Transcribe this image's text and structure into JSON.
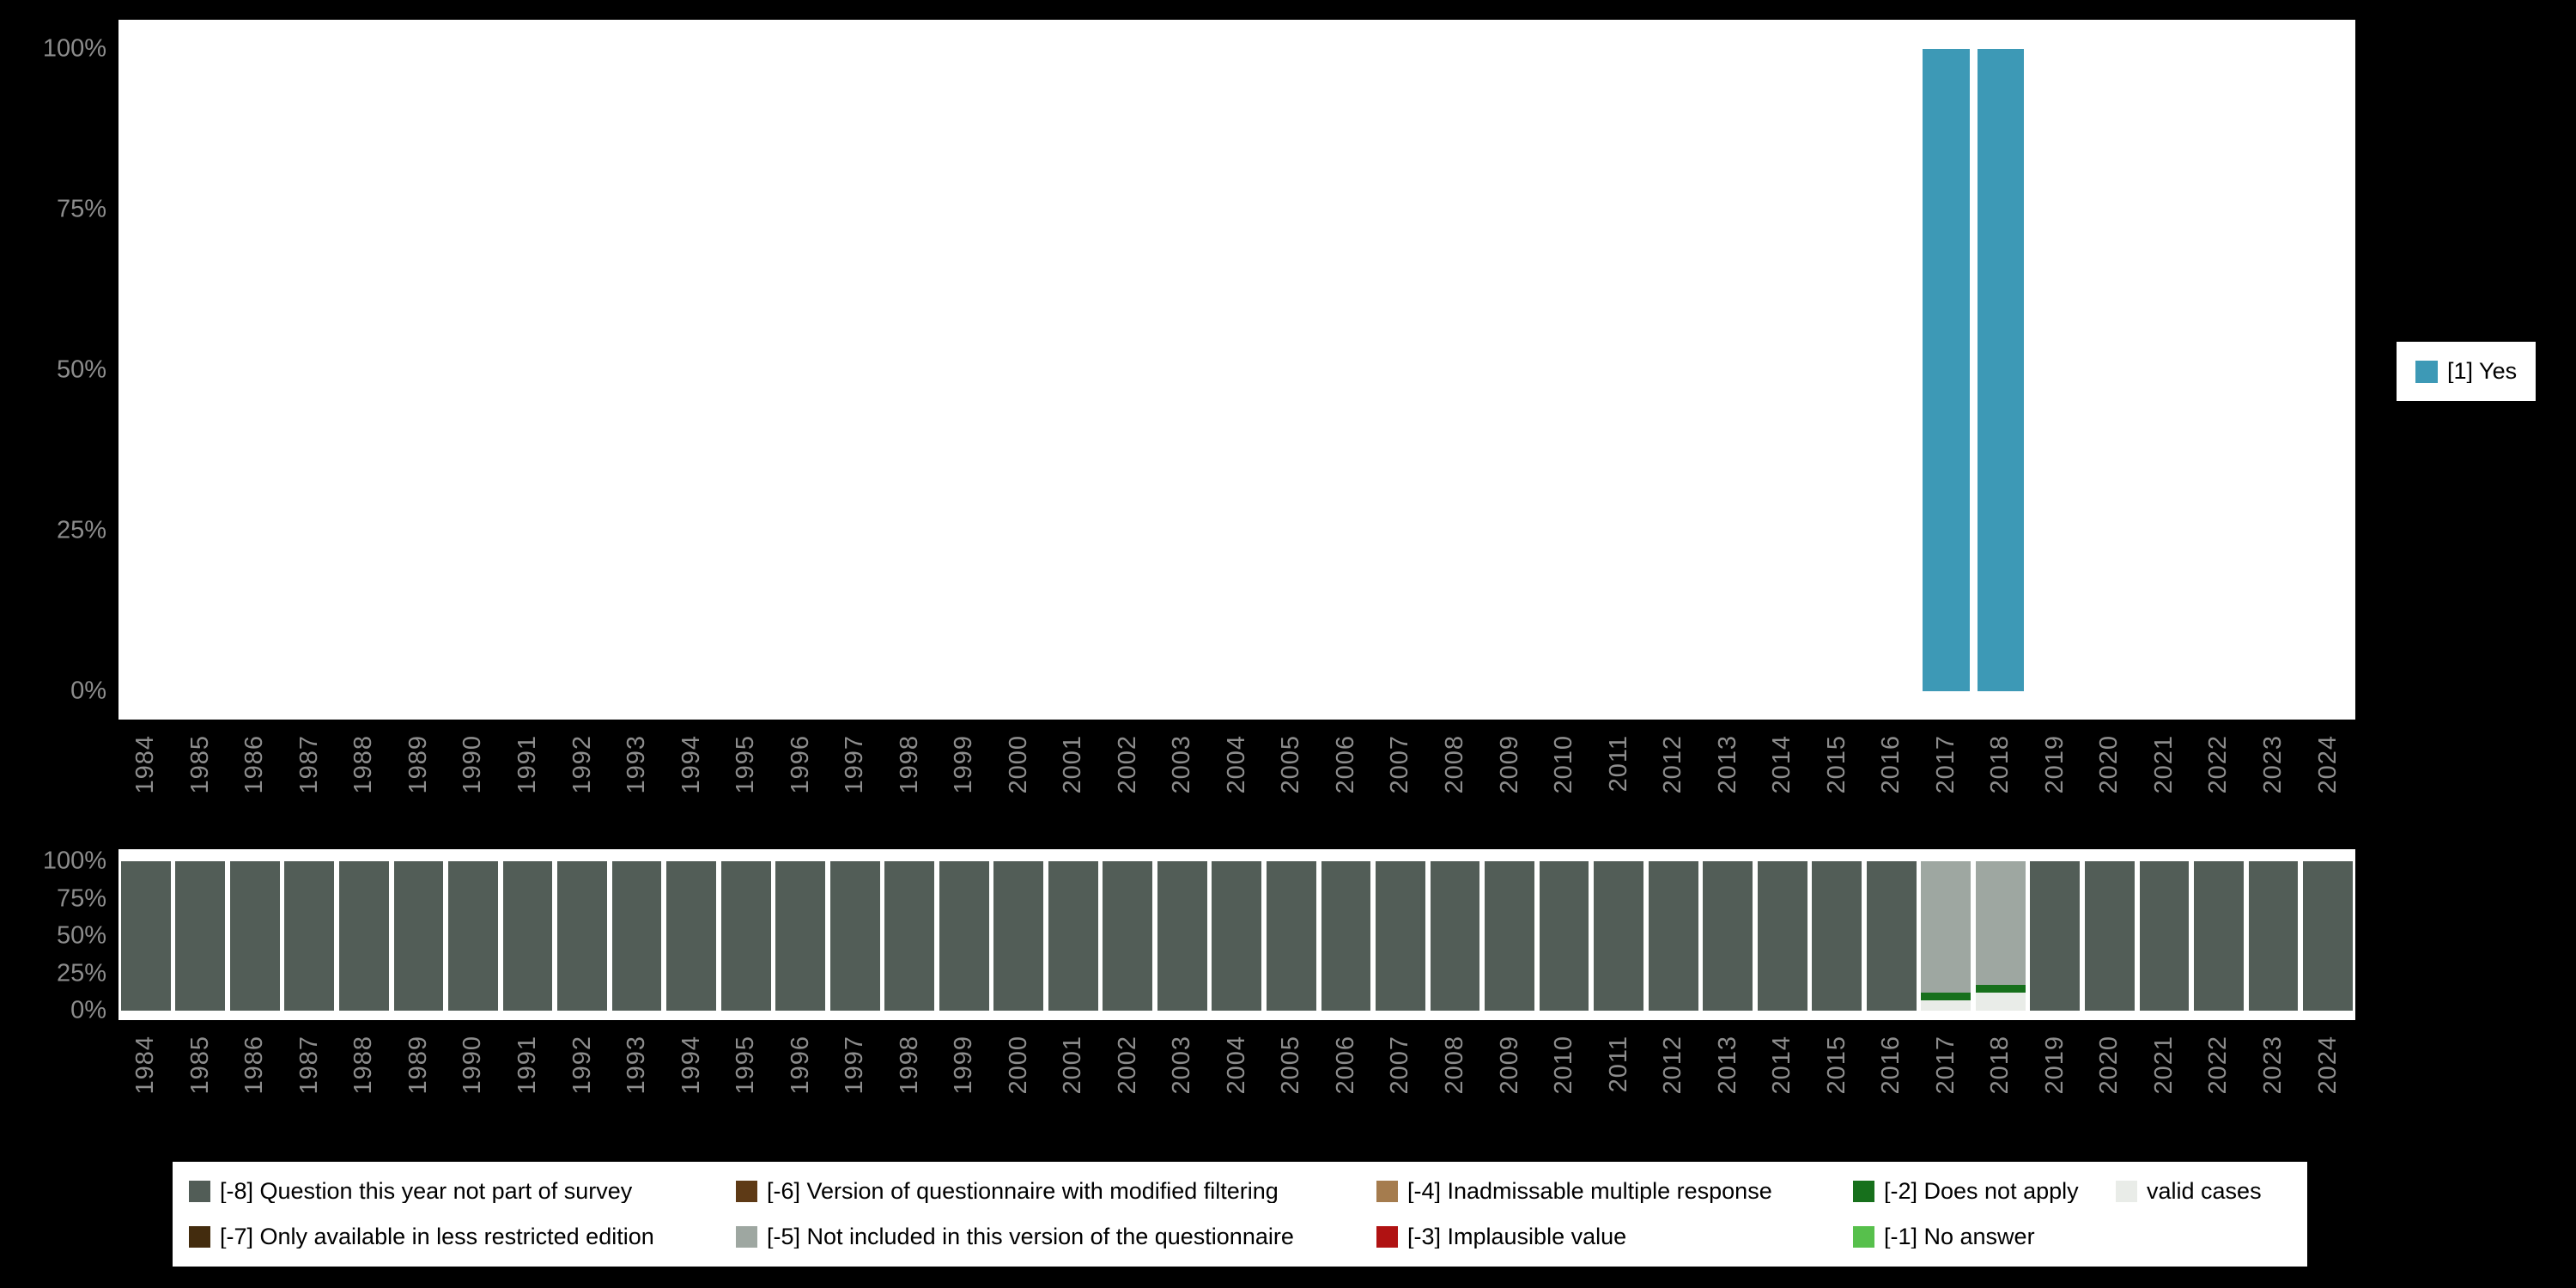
{
  "colors": {
    "background": "#000000",
    "plot_background": "#ffffff",
    "axis_label": "#8d8d8d",
    "legend_background": "#ffffff",
    "legend_text": "#000000"
  },
  "category_colors": {
    "[1] Yes": "#3d99b6",
    "[-8] Question this year not part of survey": "#525d57",
    "[-7] Only available in less restricted edition": "#432c0e",
    "[-6] Version of questionnaire with modified filtering": "#5e3a16",
    "[-5] Not included in this version of the questionnaire": "#9ea7a1",
    "[-4] Inadmissable multiple response": "#a57c4e",
    "[-3] Implausible value": "#b01212",
    "[-2] Does not apply": "#17701c",
    "[-1] No answer": "#57c04c",
    "valid cases": "#e9ece8"
  },
  "chart_data": [
    {
      "id": "values-by-year",
      "type": "bar",
      "x_categories": [
        "1984",
        "1985",
        "1986",
        "1987",
        "1988",
        "1989",
        "1990",
        "1991",
        "1992",
        "1993",
        "1994",
        "1995",
        "1996",
        "1997",
        "1998",
        "1999",
        "2000",
        "2001",
        "2002",
        "2003",
        "2004",
        "2005",
        "2006",
        "2007",
        "2008",
        "2009",
        "2010",
        "2011",
        "2012",
        "2013",
        "2014",
        "2015",
        "2016",
        "2017",
        "2018",
        "2019",
        "2020",
        "2021",
        "2022",
        "2023",
        "2024"
      ],
      "ylim": [
        0,
        100
      ],
      "ytick_labels": [
        "100%",
        "75%",
        "50%",
        "25%",
        "0%"
      ],
      "grid": false,
      "series": [
        {
          "name": "[1] Yes",
          "values_by_year": {
            "2017": 100,
            "2018": 100
          }
        }
      ],
      "legend": {
        "position": "right",
        "entries": [
          "[1] Yes"
        ]
      }
    },
    {
      "id": "missing-values-by-year",
      "type": "stacked-bar",
      "x_categories": [
        "1984",
        "1985",
        "1986",
        "1987",
        "1988",
        "1989",
        "1990",
        "1991",
        "1992",
        "1993",
        "1994",
        "1995",
        "1996",
        "1997",
        "1998",
        "1999",
        "2000",
        "2001",
        "2002",
        "2003",
        "2004",
        "2005",
        "2006",
        "2007",
        "2008",
        "2009",
        "2010",
        "2011",
        "2012",
        "2013",
        "2014",
        "2015",
        "2016",
        "2017",
        "2018",
        "2019",
        "2020",
        "2021",
        "2022",
        "2023",
        "2024"
      ],
      "ylim": [
        0,
        100
      ],
      "ytick_labels": [
        "100%",
        "75%",
        "50%",
        "25%",
        "0%"
      ],
      "grid": false,
      "default_stack_bottom_to_top": [
        {
          "name": "[-8] Question this year not part of survey",
          "value": 100
        }
      ],
      "stacks_by_year_bottom_to_top": {
        "2017": [
          {
            "name": "valid cases",
            "value": 7
          },
          {
            "name": "[-2] Does not apply",
            "value": 5
          },
          {
            "name": "[-5] Not included in this version of the questionnaire",
            "value": 88
          }
        ],
        "2018": [
          {
            "name": "valid cases",
            "value": 12
          },
          {
            "name": "[-2] Does not apply",
            "value": 5
          },
          {
            "name": "[-5] Not included in this version of the questionnaire",
            "value": 83
          }
        ]
      },
      "legend": {
        "position": "bottom",
        "rows": [
          [
            "[-8] Question this year not part of survey",
            "[-6] Version of questionnaire with modified filtering",
            "[-4] Inadmissable multiple response",
            "[-2] Does not apply",
            "valid cases"
          ],
          [
            "[-7] Only available in less restricted edition",
            "[-5] Not included in this version of the questionnaire",
            "[-3] Implausible value",
            "[-1] No answer"
          ]
        ]
      }
    }
  ]
}
